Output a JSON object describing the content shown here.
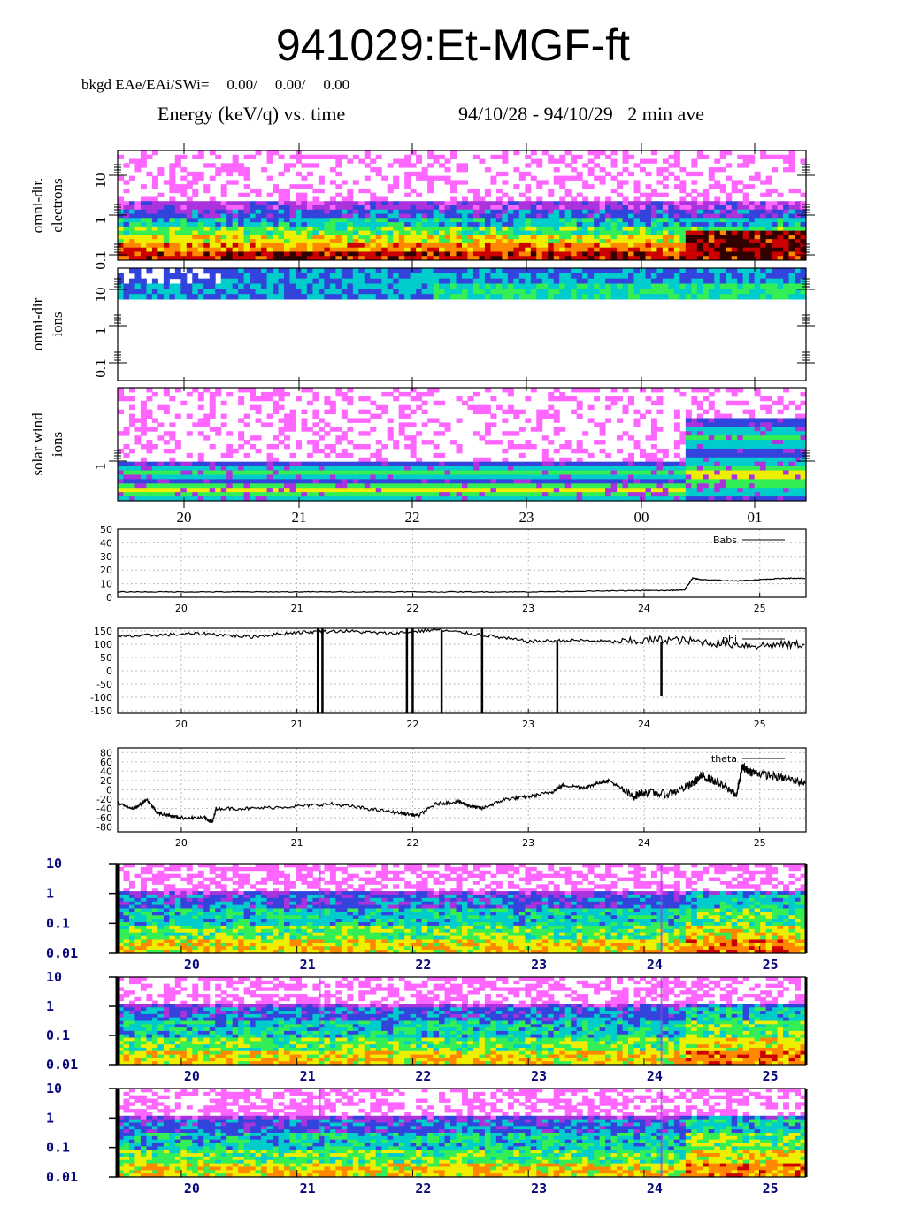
{
  "title": "941029:Et-MGF-ft",
  "background": {
    "label": "bkgd EAe/EAi/SWi=",
    "values": [
      "0.00/",
      "0.00/",
      "0.00"
    ]
  },
  "subtitle": {
    "left": "Energy (keV/q) vs. time",
    "dates": "94/10/28 - 94/10/29",
    "average": "2 min ave"
  },
  "colors": {
    "axis": "#000000",
    "trace": "#000000",
    "spectrogram_scale": [
      "#ffffff",
      "#ff66ff",
      "#aa33dd",
      "#3344dd",
      "#00cccc",
      "#33ee55",
      "#eeee00",
      "#ff8800",
      "#cc0000",
      "#330000"
    ]
  },
  "chart_data": [
    {
      "type": "heatmap",
      "ylabel": [
        "omni-dir.",
        "electrons"
      ],
      "yscale": "log",
      "ytick_labels": [
        "10",
        "1",
        "0.1"
      ],
      "x_tick_positions": [
        20,
        21,
        22,
        23,
        24,
        25
      ],
      "grid": false
    },
    {
      "type": "heatmap",
      "ylabel": [
        "omni-dir",
        "ions"
      ],
      "yscale": "log",
      "ytick_labels": [
        "10",
        "1",
        "0.1"
      ],
      "x_tick_positions": [
        20,
        21,
        22,
        23,
        24,
        25
      ],
      "grid": false
    },
    {
      "type": "heatmap",
      "ylabel": [
        "solar wind",
        "ions"
      ],
      "yscale": "log",
      "ytick_labels": [
        "1"
      ],
      "xtick_labels": [
        "20",
        "21",
        "22",
        "23",
        "00",
        "01"
      ],
      "grid": false
    },
    {
      "type": "line",
      "legend": "Babs",
      "legend_position": "top-right",
      "ylim": [
        0,
        50
      ],
      "ytick_labels": [
        "50",
        "40",
        "30",
        "20",
        "10",
        "0"
      ],
      "xtick_labels": [
        "20",
        "21",
        "22",
        "23",
        "24",
        "25"
      ],
      "xlim": [
        19.45,
        25.4
      ],
      "grid": true,
      "x": [
        19.45,
        20.0,
        20.5,
        21.0,
        21.5,
        22.0,
        22.5,
        23.0,
        23.5,
        24.0,
        24.2,
        24.35,
        24.42,
        24.5,
        24.8,
        25.0,
        25.2,
        25.4
      ],
      "y": [
        4,
        4,
        4,
        4,
        4,
        4,
        4,
        4,
        4.5,
        5,
        5,
        5.5,
        14,
        13,
        12,
        13,
        14,
        14
      ]
    },
    {
      "type": "line",
      "legend": "phi",
      "legend_position": "top-right",
      "ylim": [
        -160,
        160
      ],
      "ytick_labels": [
        "150",
        "100",
        "50",
        "0",
        "-50",
        "-100",
        "-150"
      ],
      "xtick_labels": [
        "20",
        "21",
        "22",
        "23",
        "24",
        "25"
      ],
      "xlim": [
        19.45,
        25.4
      ],
      "grid": true,
      "x": [
        19.45,
        19.8,
        20.2,
        20.6,
        21.0,
        21.4,
        21.8,
        22.2,
        22.6,
        23.0,
        23.4,
        23.8,
        24.2,
        24.6,
        25.0,
        25.4
      ],
      "y": [
        128,
        135,
        140,
        128,
        145,
        150,
        140,
        155,
        135,
        110,
        115,
        108,
        118,
        105,
        95,
        100
      ],
      "spikes": [
        {
          "x": 21.18,
          "ymin": -160,
          "ymax": 160
        },
        {
          "x": 21.22,
          "ymin": -160,
          "ymax": 160
        },
        {
          "x": 21.95,
          "ymin": -160,
          "ymax": 160
        },
        {
          "x": 22.0,
          "ymin": -160,
          "ymax": 160
        },
        {
          "x": 22.25,
          "ymin": -160,
          "ymax": 150
        },
        {
          "x": 22.6,
          "ymin": -160,
          "ymax": 160
        },
        {
          "x": 23.25,
          "ymin": -160,
          "ymax": 110
        },
        {
          "x": 24.15,
          "ymin": -95,
          "ymax": 110
        }
      ]
    },
    {
      "type": "line",
      "legend": "theta",
      "legend_position": "top-right",
      "ylim": [
        -90,
        90
      ],
      "ytick_labels": [
        "80",
        "60",
        "40",
        "20",
        "0",
        "-20",
        "-40",
        "-60",
        "-80"
      ],
      "xtick_labels": [
        "20",
        "21",
        "22",
        "23",
        "24",
        "25"
      ],
      "xlim": [
        19.45,
        25.4
      ],
      "grid": true,
      "x": [
        19.45,
        19.6,
        19.7,
        19.8,
        19.9,
        20.0,
        20.2,
        20.27,
        20.3,
        20.6,
        21.0,
        21.3,
        21.6,
        21.9,
        22.05,
        22.2,
        22.4,
        22.5,
        22.6,
        22.8,
        23.0,
        23.2,
        23.3,
        23.5,
        23.6,
        23.7,
        23.9,
        24.0,
        24.2,
        24.4,
        24.5,
        24.6,
        24.8,
        24.85,
        24.9,
        25.0,
        25.2,
        25.4
      ],
      "y": [
        -30,
        -40,
        -20,
        -50,
        -55,
        -60,
        -60,
        -70,
        -40,
        -40,
        -35,
        -30,
        -40,
        -50,
        -55,
        -30,
        -25,
        -35,
        -40,
        -20,
        -15,
        -5,
        10,
        5,
        15,
        20,
        -15,
        -5,
        -10,
        10,
        30,
        20,
        -10,
        50,
        40,
        35,
        25,
        15
      ]
    },
    {
      "type": "heatmap",
      "yscale": "log",
      "ytick_labels": [
        "10",
        "1",
        "0.1",
        "0.01"
      ],
      "xtick_labels": [
        "20",
        "21",
        "22",
        "23",
        "24",
        "25"
      ],
      "grid": false
    },
    {
      "type": "heatmap",
      "yscale": "log",
      "ytick_labels": [
        "10",
        "1",
        "0.1",
        "0.01"
      ],
      "xtick_labels": [
        "20",
        "21",
        "22",
        "23",
        "24",
        "25"
      ],
      "grid": false
    },
    {
      "type": "heatmap",
      "yscale": "log",
      "ytick_labels": [
        "10",
        "1",
        "0.1",
        "0.01"
      ],
      "xtick_labels": [
        "20",
        "21",
        "22",
        "23",
        "24",
        "25"
      ],
      "grid": false
    }
  ]
}
